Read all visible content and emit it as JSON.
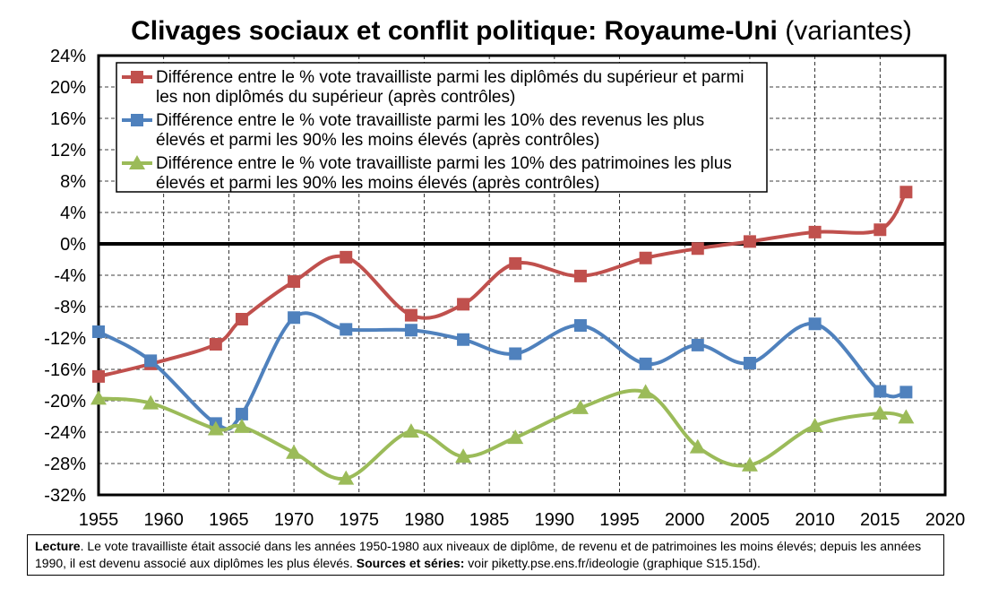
{
  "title": "Clivages sociaux et conflit politique: Royaume-Uni",
  "subtitle": "(variantes)",
  "note": {
    "lead_label": "Lecture",
    "lead_text": ". Le vote travailliste était associé dans les années 1950-1980 aux niveaux de diplôme, de revenu et de patrimoines les moins élevés; depuis les années 1990, il est devenu associé aux diplômes les plus élevés. ",
    "sources_label": "Sources et séries:",
    "sources_text": " voir piketty.pse.ens.fr/ideologie (graphique S15.15d)."
  },
  "chart_data": {
    "type": "line",
    "title": "Clivages sociaux et conflit politique: Royaume-Uni",
    "subtitle": "(variantes)",
    "xlabel": "",
    "ylabel": "",
    "xlim": [
      1955,
      2020
    ],
    "ylim": [
      -32,
      24
    ],
    "xticks": [
      "1955",
      "1960",
      "1965",
      "1970",
      "1975",
      "1980",
      "1985",
      "1990",
      "1995",
      "2000",
      "2005",
      "2010",
      "2015",
      "2020"
    ],
    "yticks": [
      "24%",
      "20%",
      "16%",
      "12%",
      "8%",
      "4%",
      "0%",
      "-4%",
      "-8%",
      "-12%",
      "-16%",
      "-20%",
      "-24%",
      "-28%",
      "-32%"
    ],
    "grid": true,
    "legend_position": "top-left",
    "series": [
      {
        "name": "Différence entre le % vote travailliste parmi les diplômés du supérieur et parmi les non diplômés du supérieur (après contrôles)",
        "color": "#c0504d",
        "marker": "square",
        "x": [
          1955,
          1959,
          1964,
          1966,
          1970,
          1974,
          1979,
          1983,
          1987,
          1992,
          1997,
          2001,
          2005,
          2010,
          2015,
          2017
        ],
        "y": [
          -16.9,
          -15.3,
          -12.8,
          -9.6,
          -4.8,
          -1.7,
          -9.1,
          -7.7,
          -2.5,
          -4.1,
          -1.8,
          -0.6,
          0.3,
          1.5,
          1.8,
          6.6
        ]
      },
      {
        "name": "Différence entre le % vote travailliste parmi les 10% des revenus les plus élevés et parmi les 90% les moins élevés (après contrôles)",
        "color": "#4f81bd",
        "marker": "square",
        "x": [
          1955,
          1959,
          1964,
          1966,
          1970,
          1974,
          1979,
          1983,
          1987,
          1992,
          1997,
          2001,
          2005,
          2010,
          2015,
          2017
        ],
        "y": [
          -11.2,
          -14.9,
          -22.9,
          -21.7,
          -9.4,
          -10.9,
          -11.0,
          -12.2,
          -14.0,
          -10.4,
          -15.3,
          -12.9,
          -15.2,
          -10.2,
          -18.8,
          -18.9
        ]
      },
      {
        "name": "Différence entre le % vote travailliste parmi les 10% des patrimoines les plus élevés et parmi les 90% les moins élevés (après contrôles)",
        "color": "#9bbb59",
        "marker": "triangle",
        "x": [
          1955,
          1959,
          1964,
          1966,
          1970,
          1974,
          1979,
          1983,
          1987,
          1992,
          1997,
          2001,
          2005,
          2010,
          2015,
          2017
        ],
        "y": [
          -19.7,
          -20.3,
          -23.6,
          -23.3,
          -26.6,
          -29.9,
          -23.9,
          -27.1,
          -24.7,
          -20.9,
          -18.9,
          -25.9,
          -28.2,
          -23.2,
          -21.6,
          -22.1
        ]
      }
    ]
  }
}
